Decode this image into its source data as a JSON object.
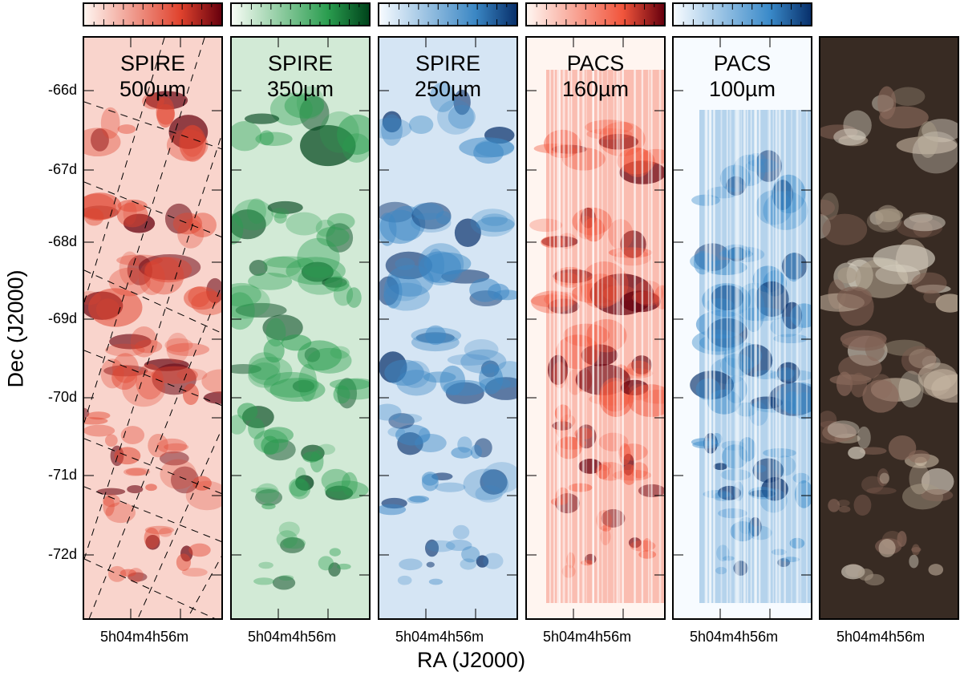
{
  "figure": {
    "y_axis_title": "Dec (J2000)",
    "x_axis_title": "RA (J2000)",
    "dec_ticks": [
      "-66d",
      "-67d",
      "-68d",
      "-69d",
      "-70d",
      "-71d",
      "-72d"
    ],
    "ra_tick_label": "5h04m4h56m",
    "panels": [
      {
        "instrument": "SPIRE",
        "wavelength": "500µm",
        "colormap": "Reds",
        "color_light": "#fff5f0",
        "color_dark": "#67000d",
        "color_mid": "#e0432e"
      },
      {
        "instrument": "SPIRE",
        "wavelength": "350µm",
        "colormap": "Greens",
        "color_light": "#f7fcf5",
        "color_dark": "#00441b",
        "color_mid": "#2a9d4f"
      },
      {
        "instrument": "SPIRE",
        "wavelength": "250µm",
        "colormap": "Blues",
        "color_light": "#f7fbff",
        "color_dark": "#08306b",
        "color_mid": "#3b87c4"
      },
      {
        "instrument": "PACS",
        "wavelength": "160µm",
        "colormap": "Reds",
        "color_light": "#fff5f0",
        "color_dark": "#67000d",
        "color_mid": "#f1553c"
      },
      {
        "instrument": "PACS",
        "wavelength": "100µm",
        "colormap": "Blues",
        "color_light": "#f7fbff",
        "color_dark": "#08306b",
        "color_mid": "#3a8ac9"
      },
      {
        "instrument": "",
        "wavelength": "",
        "colormap": "RGB composite",
        "color_light": "#3a2a22",
        "color_dark": "#1e1410",
        "color_mid": "#9a8878"
      }
    ]
  }
}
